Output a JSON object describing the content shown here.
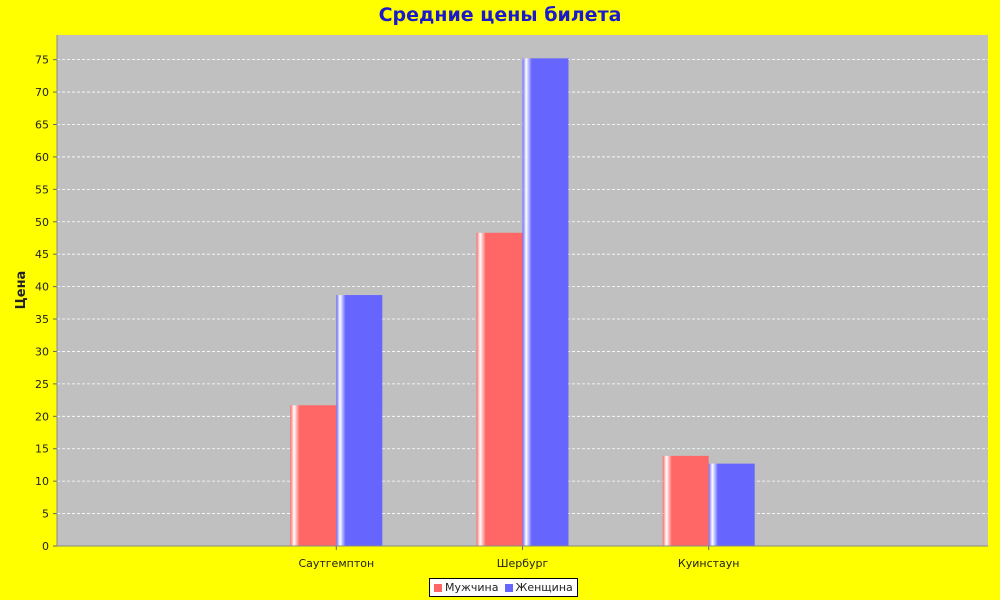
{
  "chart_data": {
    "type": "bar",
    "title": "Средние цены билета",
    "xlabel": "",
    "ylabel": "Цена",
    "categories": [
      "Саутгемптон",
      "Шербург",
      "Куинстаун"
    ],
    "series": [
      {
        "name": "Мужчина",
        "values": [
          21.7,
          48.3,
          13.9
        ],
        "color": "#ff6666"
      },
      {
        "name": "Женщина",
        "values": [
          38.7,
          75.2,
          12.7
        ],
        "color": "#6666ff"
      }
    ],
    "ylim": [
      0,
      78.8
    ],
    "yticks": [
      0,
      5,
      10,
      15,
      20,
      25,
      30,
      35,
      40,
      45,
      50,
      55,
      60,
      65,
      70,
      75
    ],
    "grid": true,
    "legend": "bottom",
    "colors": {
      "background": "#ffff00",
      "plot_background": "#c0c0c0",
      "title": "#1a1acc",
      "gridline": "#ffffff"
    }
  }
}
